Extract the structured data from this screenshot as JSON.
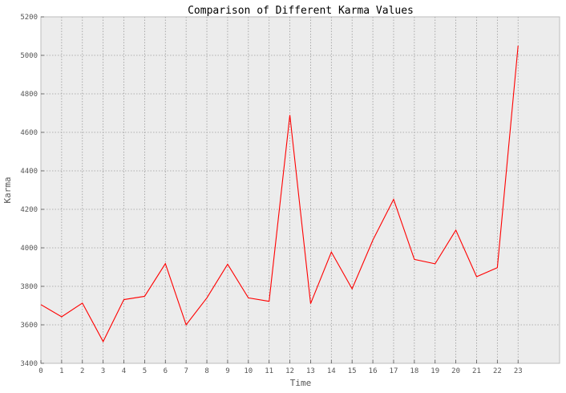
{
  "chart_data": {
    "type": "line",
    "title": "Comparison of Different Karma Values",
    "xlabel": "Time",
    "ylabel": "Karma",
    "x": [
      0,
      1,
      2,
      3,
      4,
      5,
      6,
      7,
      8,
      9,
      10,
      11,
      12,
      13,
      14,
      15,
      16,
      17,
      18,
      19,
      20,
      21,
      22,
      23
    ],
    "series": [
      {
        "values": [
          3705,
          3642,
          3713,
          3513,
          3731,
          3748,
          3918,
          3600,
          3740,
          3915,
          3740,
          3722,
          4690,
          3710,
          3978,
          3787,
          4040,
          4252,
          3940,
          3917,
          4092,
          3850,
          3897,
          5050
        ],
        "color": "#ff0000"
      }
    ],
    "xlim": [
      0,
      25
    ],
    "ylim": [
      3400,
      5200
    ],
    "xticks": [
      "0",
      "1",
      "2",
      "3",
      "4",
      "5",
      "6",
      "7",
      "8",
      "9",
      "10",
      "11",
      "12",
      "13",
      "14",
      "15",
      "16",
      "17",
      "18",
      "19",
      "20",
      "21",
      "22",
      "23"
    ],
    "yticks": [
      "3400",
      "3600",
      "3800",
      "4000",
      "4200",
      "4400",
      "4600",
      "4800",
      "5000",
      "5200"
    ],
    "grid": true,
    "plot_background": "#ececec",
    "frame_color": "#bcbcbc"
  }
}
